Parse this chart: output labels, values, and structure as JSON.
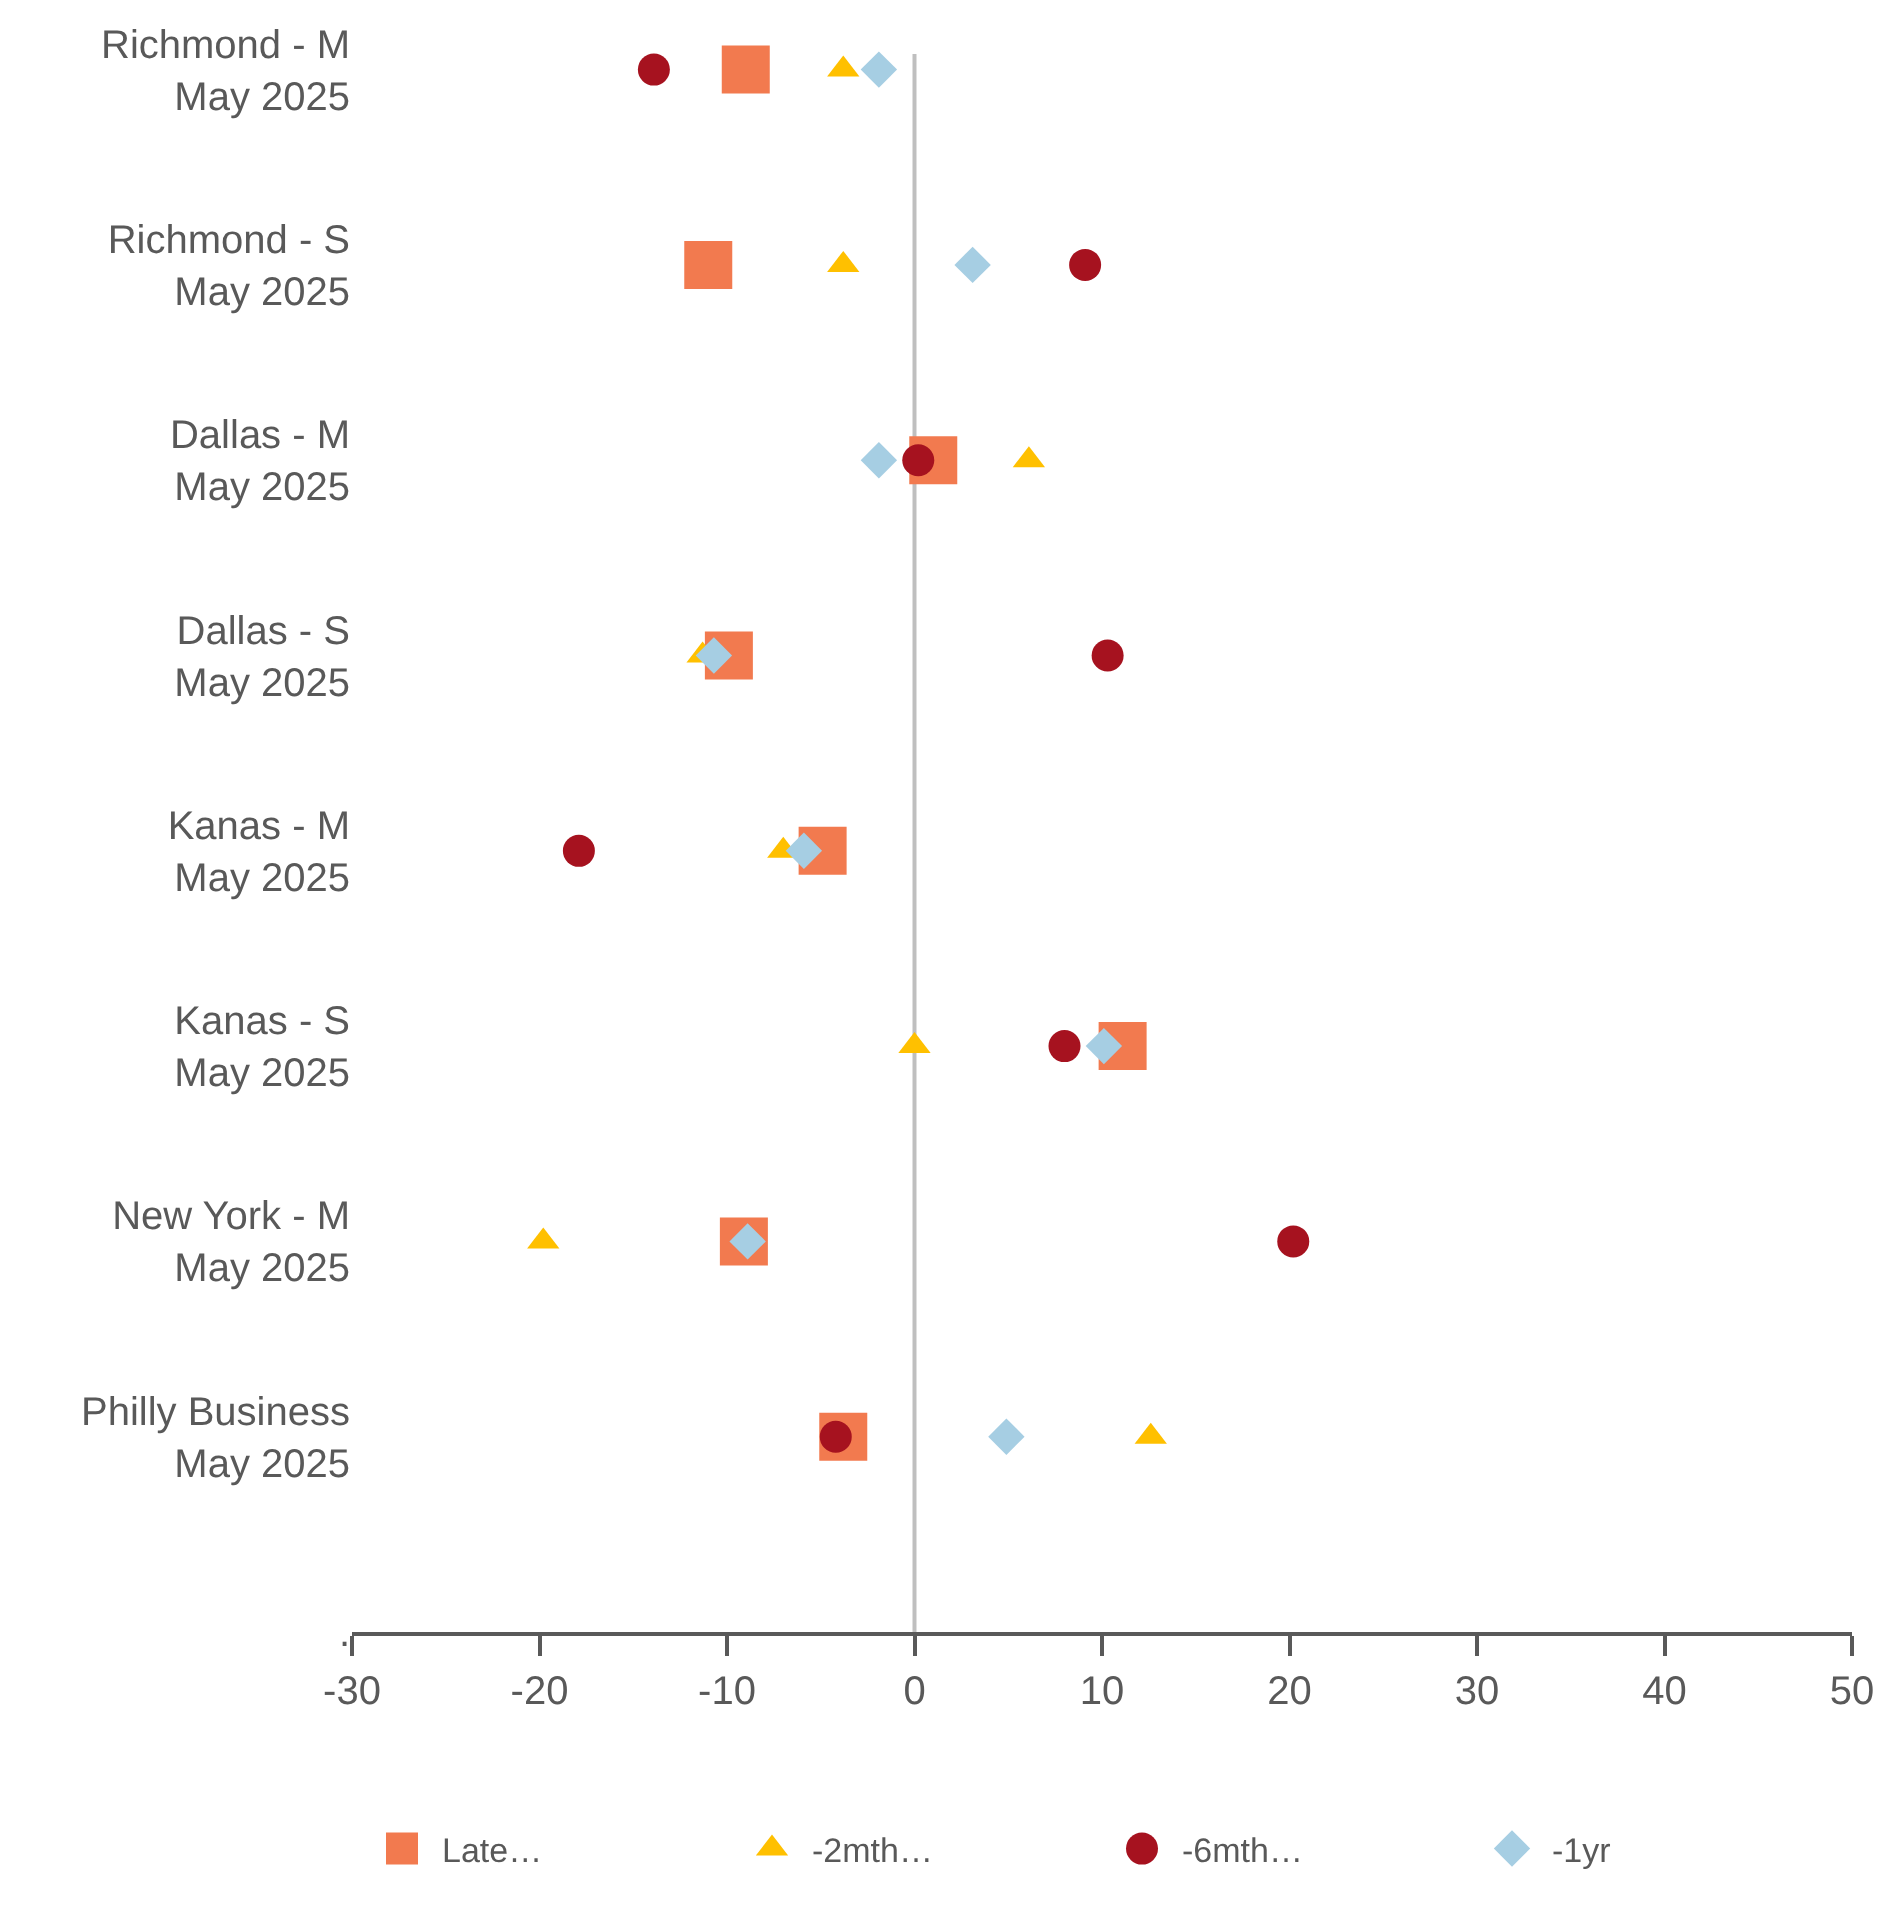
{
  "chart_data": {
    "type": "scatter",
    "orientation": "horizontal",
    "categories": [
      "Richmond - M\nMay 2025",
      "Richmond - S\nMay 2025",
      "Dallas - M\nMay 2025",
      "Dallas - S\nMay 2025",
      "Kanas - M\nMay 2025",
      "Kanas - S\nMay 2025",
      "New York - M\nMay 2025",
      "Philly Business\nMay 2025",
      "."
    ],
    "xlim": [
      -30,
      50
    ],
    "xticks": [
      -30,
      -20,
      -10,
      0,
      10,
      20,
      30,
      40,
      50
    ],
    "series": [
      {
        "name": "Late…",
        "color": "#f27a4f",
        "marker": "square",
        "values": [
          -9,
          -11,
          1,
          -9.9,
          -4.9,
          11.1,
          -9.1,
          -3.8,
          null
        ]
      },
      {
        "name": "-2mth…",
        "color": "#ffc000",
        "marker": "triangle",
        "values": [
          -3.8,
          -3.8,
          6.1,
          -11.3,
          -7,
          0,
          -19.8,
          12.6,
          null
        ]
      },
      {
        "name": "-6mth…",
        "color": "#a6121f",
        "marker": "circle",
        "values": [
          -13.9,
          9.1,
          0.2,
          10.3,
          -17.9,
          8,
          20.2,
          -4.2,
          null
        ]
      },
      {
        "name": "-1yr",
        "color": "#a6cee3",
        "marker": "diamond",
        "values": [
          -1.9,
          3.1,
          -1.9,
          -10.7,
          -5.9,
          10.1,
          -8.9,
          4.9,
          null
        ]
      }
    ],
    "ref_lines": [
      {
        "axis": "x",
        "value": 0,
        "color": "#bfbfbf"
      }
    ],
    "grid": false,
    "legend": "bottom"
  }
}
